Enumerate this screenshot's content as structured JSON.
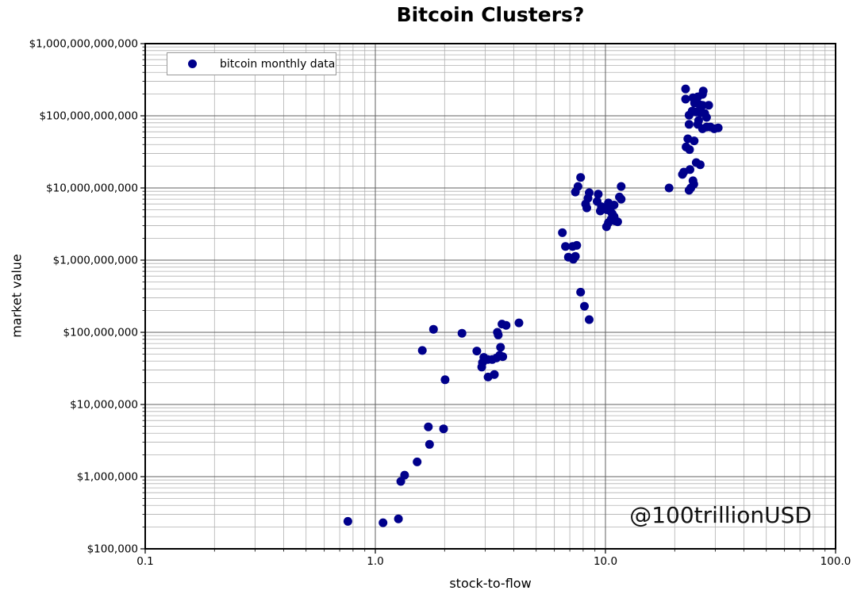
{
  "title": "Bitcoin Clusters?",
  "watermark": "@100trillionUSD",
  "legend": {
    "label": "bitcoin monthly data",
    "marker_color": "#00008b"
  },
  "colors": {
    "point": "#00008b",
    "grid_major": "#606060",
    "grid_minor": "#b0b0b0",
    "axis_border": "#000000"
  },
  "chart_data": {
    "type": "scatter",
    "title": "Bitcoin Clusters?",
    "xlabel": "stock-to-flow",
    "ylabel": "market value",
    "x_scale": "log",
    "y_scale": "log",
    "xlim": [
      0.1,
      100.0
    ],
    "ylim": [
      100000,
      1000000000000
    ],
    "x_tick_labels": [
      "0.1",
      "1.0",
      "10.0",
      "100.0"
    ],
    "y_tick_labels": [
      "$100,000",
      "$1,000,000",
      "$10,000,000",
      "$100,000,000",
      "$1,000,000,000",
      "$10,000,000,000",
      "$100,000,000,000",
      "$1,000,000,000,000"
    ],
    "grid": true,
    "legend_position": "upper left",
    "series": [
      {
        "name": "bitcoin monthly data",
        "color": "#00008b",
        "marker": "circle",
        "points": [
          [
            0.76,
            240000.0
          ],
          [
            1.08,
            230000.0
          ],
          [
            1.26,
            260000.0
          ],
          [
            1.29,
            860000.0
          ],
          [
            1.34,
            1050000.0
          ],
          [
            1.52,
            1600000.0
          ],
          [
            1.72,
            2800000.0
          ],
          [
            1.7,
            4900000.0
          ],
          [
            1.98,
            4600000.0
          ],
          [
            2.01,
            22000000.0
          ],
          [
            1.6,
            56000000.0
          ],
          [
            1.79,
            110000000.0
          ],
          [
            2.38,
            97000000.0
          ],
          [
            2.76,
            55000000.0
          ],
          [
            2.96,
            45000000.0
          ],
          [
            2.92,
            38000000.0
          ],
          [
            2.9,
            33000000.0
          ],
          [
            3.08,
            42000000.0
          ],
          [
            3.22,
            42000000.0
          ],
          [
            3.36,
            44000000.0
          ],
          [
            3.47,
            48000000.0
          ],
          [
            3.58,
            46000000.0
          ],
          [
            3.5,
            62000000.0
          ],
          [
            3.39,
            100000000.0
          ],
          [
            3.42,
            92000000.0
          ],
          [
            3.55,
            130000000.0
          ],
          [
            3.7,
            125000000.0
          ],
          [
            4.21,
            135000000.0
          ],
          [
            3.29,
            26000000.0
          ],
          [
            3.09,
            24000000.0
          ],
          [
            8.5,
            150000000.0
          ],
          [
            8.1,
            230000000.0
          ],
          [
            7.8,
            360000000.0
          ],
          [
            6.5,
            2400000000.0
          ],
          [
            6.7,
            1550000000.0
          ],
          [
            7.2,
            1550000000.0
          ],
          [
            7.5,
            1600000000.0
          ],
          [
            6.9,
            1100000000.0
          ],
          [
            7.25,
            1030000000.0
          ],
          [
            7.4,
            1130000000.0
          ],
          [
            7.8,
            14000000000.0
          ],
          [
            7.6,
            10500000000.0
          ],
          [
            7.4,
            8800000000.0
          ],
          [
            8.5,
            8600000000.0
          ],
          [
            8.4,
            7200000000.0
          ],
          [
            8.2,
            6000000000.0
          ],
          [
            8.3,
            5300000000.0
          ],
          [
            9.3,
            8200000000.0
          ],
          [
            9.2,
            6500000000.0
          ],
          [
            11.7,
            10500000000.0
          ],
          [
            11.5,
            7500000000.0
          ],
          [
            11.7,
            7000000000.0
          ],
          [
            10.9,
            5800000000.0
          ],
          [
            10.3,
            6200000000.0
          ],
          [
            9.6,
            5500000000.0
          ],
          [
            9.5,
            4800000000.0
          ],
          [
            10.1,
            5000000000.0
          ],
          [
            10.5,
            4800000000.0
          ],
          [
            10.7,
            4400000000.0
          ],
          [
            10.9,
            4000000000.0
          ],
          [
            10.6,
            3700000000.0
          ],
          [
            11.0,
            3500000000.0
          ],
          [
            11.3,
            3400000000.0
          ],
          [
            10.3,
            3300000000.0
          ],
          [
            10.1,
            2900000000.0
          ],
          [
            18.9,
            10000000000.0
          ],
          [
            21.6,
            15400000000.0
          ],
          [
            21.9,
            16600000000.0
          ],
          [
            23.3,
            18000000000.0
          ],
          [
            24.8,
            22500000000.0
          ],
          [
            25.8,
            21000000000.0
          ],
          [
            24.0,
            12600000000.0
          ],
          [
            24.2,
            11300000000.0
          ],
          [
            23.5,
            10000000000.0
          ],
          [
            23.1,
            9300000000.0
          ],
          [
            22.8,
            48000000000.0
          ],
          [
            24.3,
            45000000000.0
          ],
          [
            22.4,
            37000000000.0
          ],
          [
            23.2,
            34000000000.0
          ],
          [
            22.3,
            236000000000.0
          ],
          [
            22.3,
            170000000000.0
          ],
          [
            24.0,
            178000000000.0
          ],
          [
            25.2,
            183000000000.0
          ],
          [
            26.4,
            198000000000.0
          ],
          [
            26.6,
            220000000000.0
          ],
          [
            24.4,
            150000000000.0
          ],
          [
            25.6,
            143000000000.0
          ],
          [
            26.4,
            140000000000.0
          ],
          [
            28.1,
            140000000000.0
          ],
          [
            23.8,
            116000000000.0
          ],
          [
            24.8,
            113000000000.0
          ],
          [
            26.0,
            110000000000.0
          ],
          [
            27.0,
            108000000000.0
          ],
          [
            23.1,
            102000000000.0
          ],
          [
            27.5,
            95000000000.0
          ],
          [
            25.4,
            86000000000.0
          ],
          [
            23.1,
            76000000000.0
          ],
          [
            25.2,
            76000000000.0
          ],
          [
            26.4,
            66000000000.0
          ],
          [
            27.5,
            70000000000.0
          ],
          [
            28.6,
            70000000000.0
          ],
          [
            29.7,
            66000000000.0
          ],
          [
            30.9,
            68000000000.0
          ]
        ]
      }
    ]
  }
}
